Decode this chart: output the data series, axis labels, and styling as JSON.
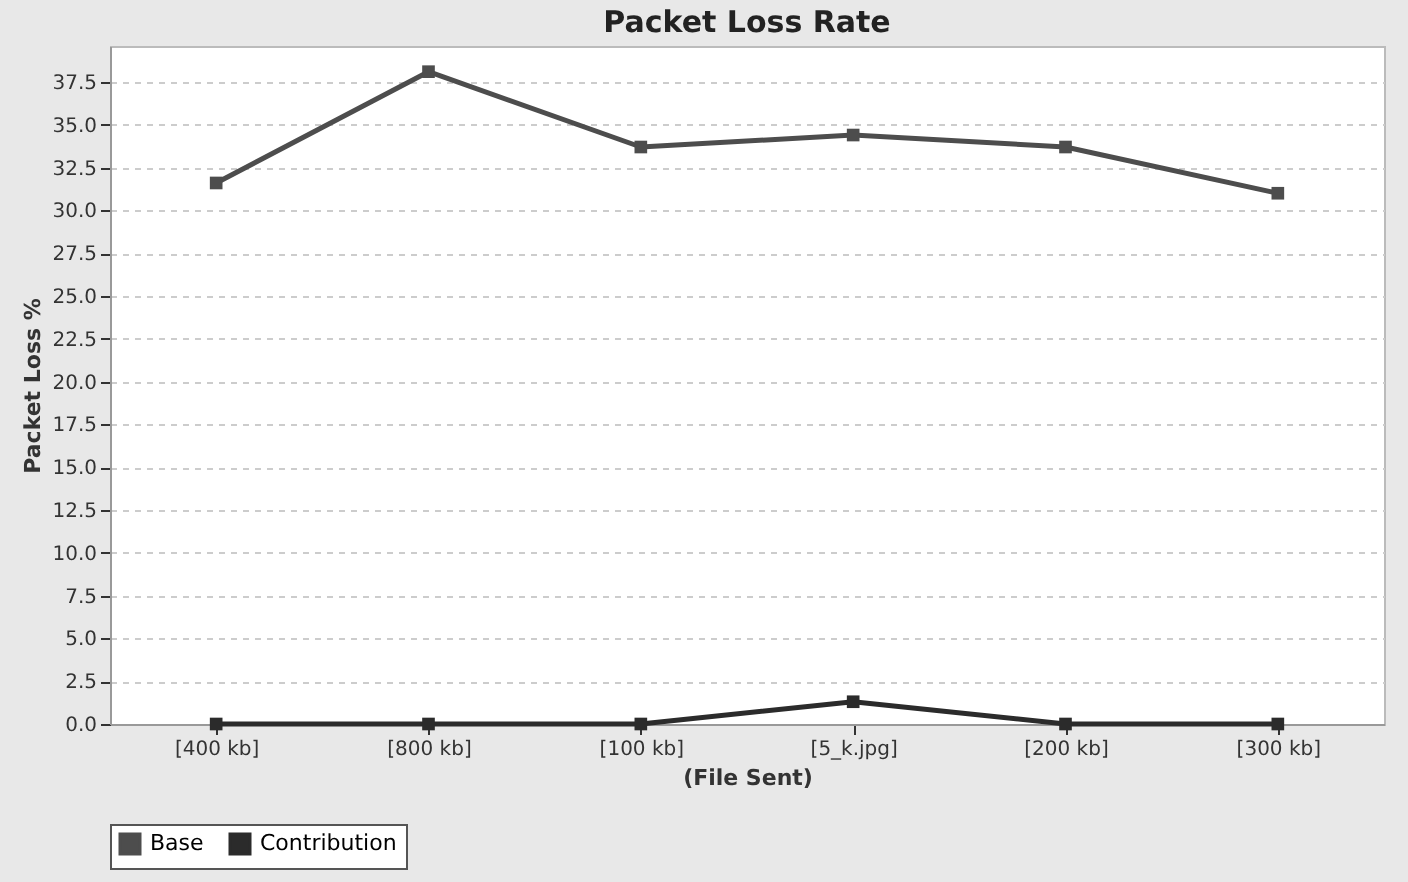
{
  "chart_data": {
    "type": "line",
    "title": "Packet Loss Rate",
    "xlabel": "(File Sent)",
    "ylabel": "Packet Loss %",
    "categories": [
      "[400 kb]",
      "[800 kb]",
      "[100 kb]",
      "[5_k.jpg]",
      "[200 kb]",
      "[300 kb]"
    ],
    "series": [
      {
        "name": "Base",
        "color": "#4d4d4d",
        "values": [
          31.6,
          38.1,
          33.7,
          34.4,
          33.7,
          31.0
        ]
      },
      {
        "name": "Contribution",
        "color": "#2b2b2b",
        "values": [
          0,
          0,
          0,
          1.3,
          0,
          0
        ]
      }
    ],
    "ylim": [
      0,
      39.6
    ],
    "yticks": [
      {
        "value": 0,
        "label": "0.0"
      },
      {
        "value": 2.5,
        "label": "2.5"
      },
      {
        "value": 5,
        "label": "5.0"
      },
      {
        "value": 7.5,
        "label": "7.5"
      },
      {
        "value": 10,
        "label": "10.0"
      },
      {
        "value": 12.5,
        "label": "12.5"
      },
      {
        "value": 15,
        "label": "15.0"
      },
      {
        "value": 17.5,
        "label": "17.5"
      },
      {
        "value": 20,
        "label": "20.0"
      },
      {
        "value": 22.5,
        "label": "22.5"
      },
      {
        "value": 25,
        "label": "25.0"
      },
      {
        "value": 27.5,
        "label": "27.5"
      },
      {
        "value": 30,
        "label": "30.0"
      },
      {
        "value": 32.5,
        "label": "32.5"
      },
      {
        "value": 35,
        "label": "35.0"
      },
      {
        "value": 37.5,
        "label": "37.5"
      }
    ],
    "grid": "y",
    "legend": "bottom",
    "marker": "square",
    "line_style": "solid"
  }
}
